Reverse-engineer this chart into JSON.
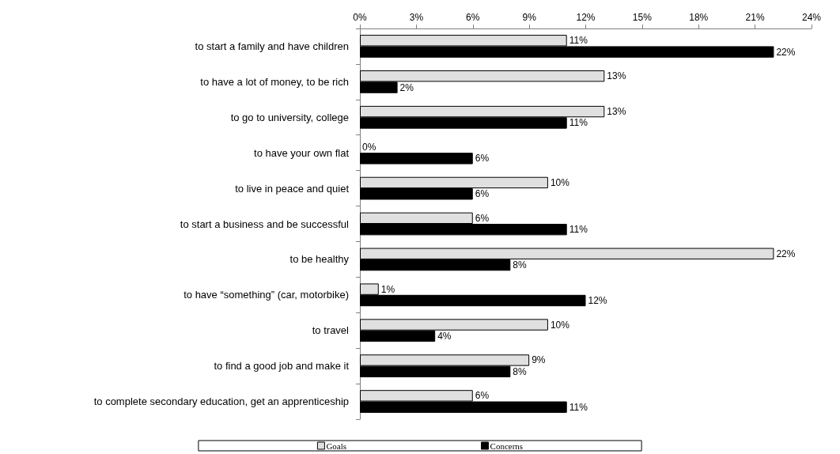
{
  "chart_data": {
    "type": "bar",
    "orientation": "horizontal",
    "categories": [
      "to start a family and have children",
      "to have a lot of money, to be rich",
      "to go to university, college",
      "to have your own flat",
      "to live in peace and quiet",
      "to start a business and be successful",
      "to be healthy",
      "to have “something” (car, motorbike)",
      "to travel",
      "to find a good job and make it",
      "to complete secondary education, get an apprenticeship"
    ],
    "series": [
      {
        "name": "Goals",
        "color": "#e0e0e0",
        "values": [
          11,
          13,
          13,
          0,
          10,
          6,
          22,
          1,
          10,
          9,
          6
        ],
        "value_labels": [
          "11%",
          "13%",
          "13%",
          "0%",
          "10%",
          "6%",
          "22%",
          "1%",
          "10%",
          "9%",
          "6%"
        ]
      },
      {
        "name": "Concerns",
        "color": "#000000",
        "values": [
          22,
          2,
          11,
          6,
          6,
          11,
          8,
          12,
          4,
          8,
          11
        ],
        "value_labels": [
          "22%",
          "2%",
          "11%",
          "6%",
          "6%",
          "11%",
          "8%",
          "12%",
          "4%",
          "8%",
          "11%"
        ]
      }
    ],
    "xlim": [
      0,
      24
    ],
    "xticks": [
      {
        "value": 0,
        "label": "0%"
      },
      {
        "value": 3,
        "label": "3%"
      },
      {
        "value": 6,
        "label": "6%"
      },
      {
        "value": 9,
        "label": "9%"
      },
      {
        "value": 12,
        "label": "12%"
      },
      {
        "value": 15,
        "label": "15%"
      },
      {
        "value": 18,
        "label": "18%"
      },
      {
        "value": 21,
        "label": "21%"
      },
      {
        "value": 24,
        "label": "24%"
      }
    ],
    "grid": false,
    "legend": "bottom"
  }
}
